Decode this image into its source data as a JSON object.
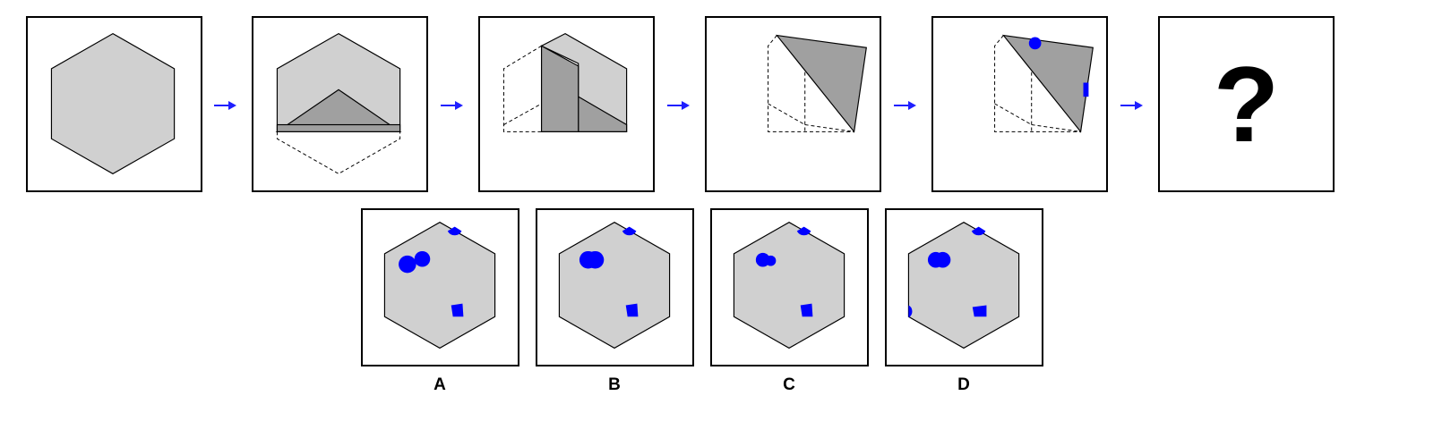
{
  "question_mark": "?",
  "options": [
    {
      "label": "A"
    },
    {
      "label": "B"
    },
    {
      "label": "C"
    },
    {
      "label": "D"
    }
  ],
  "colors": {
    "hexagon_fill": "#d0d0d0",
    "fold_fill": "#a0a0a0",
    "mark": "#0000ff",
    "arrow": "#1f1fff",
    "stroke": "#000000"
  }
}
